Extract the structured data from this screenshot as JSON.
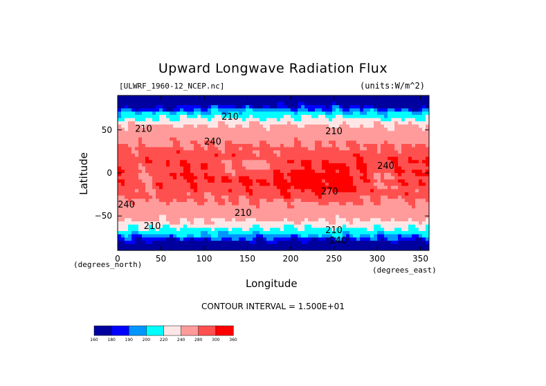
{
  "chart_data": {
    "type": "heatmap",
    "title": "Upward Longwave Radiation Flux",
    "file_label": "[ULWRF_1960-12_NCEP.nc]",
    "units_label": "(units:W/m^2)",
    "xlabel": "Longitude",
    "ylabel": "Latitude",
    "x_units": "(degrees_east)",
    "y_units": "(degrees_north)",
    "xlim": [
      0,
      360
    ],
    "ylim": [
      -90,
      90
    ],
    "x_ticks": [
      0,
      50,
      100,
      150,
      200,
      250,
      300,
      350
    ],
    "y_ticks": [
      50,
      0,
      -50
    ],
    "contour_interval_text": "CONTOUR INTERVAL = 1.500E+01",
    "contour_labels": [
      {
        "text": "210",
        "lon": 130,
        "lat": 62
      },
      {
        "text": "210",
        "lon": 30,
        "lat": 48
      },
      {
        "text": "210",
        "lon": 250,
        "lat": 45
      },
      {
        "text": "240",
        "lon": 110,
        "lat": 33
      },
      {
        "text": "240",
        "lon": 310,
        "lat": 5
      },
      {
        "text": "270",
        "lon": 245,
        "lat": -25
      },
      {
        "text": "240",
        "lon": 10,
        "lat": -40
      },
      {
        "text": "210",
        "lon": 145,
        "lat": -50
      },
      {
        "text": "210",
        "lon": 40,
        "lat": -65
      },
      {
        "text": "210",
        "lon": 250,
        "lat": -70
      },
      {
        "text": "240",
        "lon": 255,
        "lat": -82
      }
    ],
    "colorbar": {
      "labels": [
        "160",
        "180",
        "190",
        "200",
        "220",
        "240",
        "280",
        "300",
        "360"
      ],
      "colors": [
        "#00009e",
        "#0000ff",
        "#0096ff",
        "#00ffff",
        "#ffe6e6",
        "#ff9b9b",
        "#ff5050",
        "#ff0000"
      ]
    }
  }
}
